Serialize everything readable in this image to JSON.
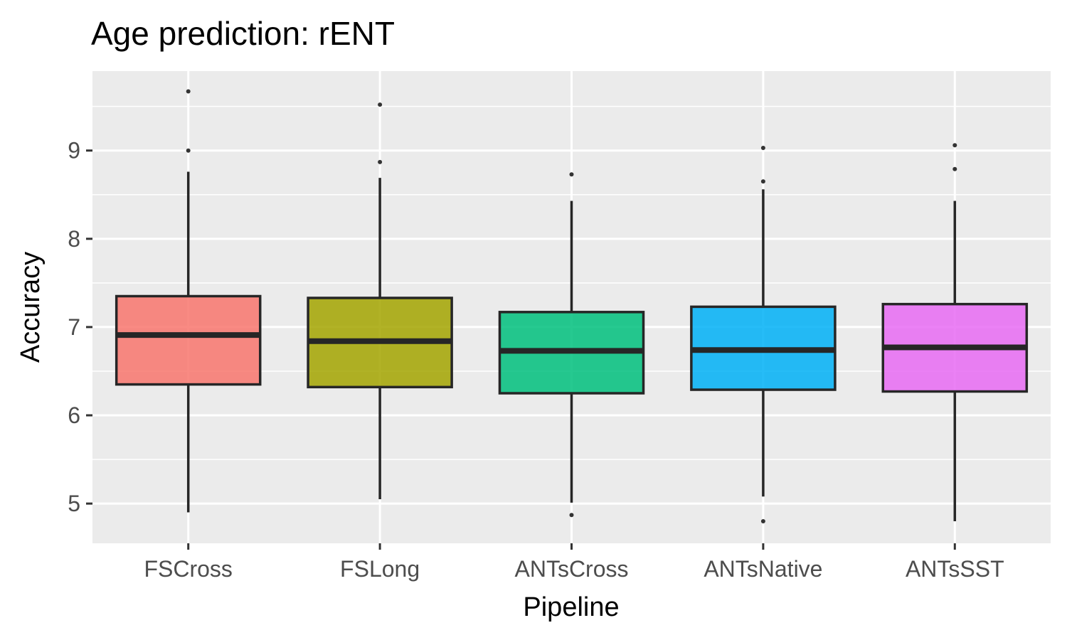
{
  "chart_data": {
    "type": "box",
    "title": "Age prediction: rENT",
    "xlabel": "Pipeline",
    "ylabel": "Accuracy",
    "ylim": [
      4.55,
      9.9
    ],
    "yticks": [
      5,
      6,
      7,
      8,
      9
    ],
    "ytick_labels": [
      "5",
      "6",
      "7",
      "8",
      "9"
    ],
    "grid": true,
    "legend": "none",
    "categories": [
      "FSCross",
      "FSLong",
      "ANTsCross",
      "ANTsNative",
      "ANTsSST"
    ],
    "colors": [
      "#F8766D",
      "#A3A500",
      "#00BF7D",
      "#00B0F6",
      "#E76BF3"
    ],
    "boxes": [
      {
        "whisker_low": 4.9,
        "q1": 6.35,
        "median": 6.91,
        "q3": 7.35,
        "whisker_high": 8.76,
        "outliers": [
          9.0,
          9.67
        ]
      },
      {
        "whisker_low": 5.05,
        "q1": 6.32,
        "median": 6.84,
        "q3": 7.33,
        "whisker_high": 8.69,
        "outliers": [
          8.87,
          9.52
        ]
      },
      {
        "whisker_low": 5.01,
        "q1": 6.25,
        "median": 6.73,
        "q3": 7.17,
        "whisker_high": 8.43,
        "outliers": [
          4.87,
          8.73
        ]
      },
      {
        "whisker_low": 5.08,
        "q1": 6.29,
        "median": 6.74,
        "q3": 7.23,
        "whisker_high": 8.56,
        "outliers": [
          4.8,
          8.65,
          9.03
        ]
      },
      {
        "whisker_low": 4.8,
        "q1": 6.27,
        "median": 6.77,
        "q3": 7.26,
        "whisker_high": 8.43,
        "outliers": [
          8.79,
          9.06
        ]
      }
    ]
  }
}
